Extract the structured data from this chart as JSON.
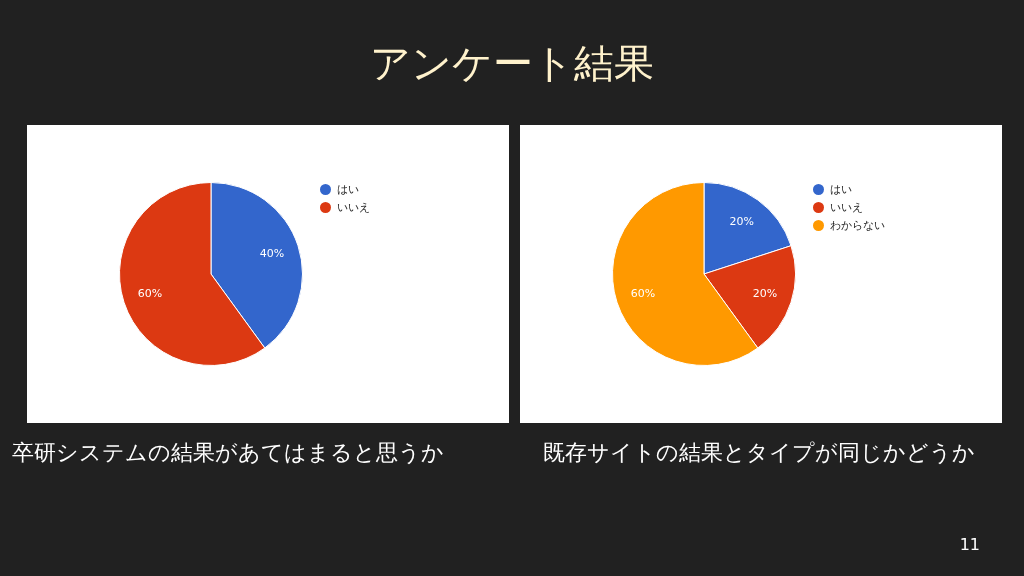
{
  "chart_data": [
    {
      "type": "pie",
      "title": "卒研システムの結果があてはまると思うか",
      "annotations": [
        "アンケート結果"
      ],
      "categories": [
        "はい",
        "いいえ"
      ],
      "values": [
        40,
        60
      ],
      "value_labels": [
        "40%",
        "60%"
      ],
      "colors": [
        "#3366cc",
        "#dc3912"
      ],
      "legend": "top right"
    },
    {
      "type": "pie",
      "title": "既存サイトの結果とタイプが同じかどうか",
      "annotations": [
        "11"
      ],
      "categories": [
        "はい",
        "いいえ",
        "わからない"
      ],
      "values": [
        20,
        20,
        60
      ],
      "value_labels": [
        "20%",
        "20%",
        "60%"
      ],
      "colors": [
        "#3366cc",
        "#dc3912",
        "#ff9900"
      ],
      "legend": "top right"
    }
  ]
}
